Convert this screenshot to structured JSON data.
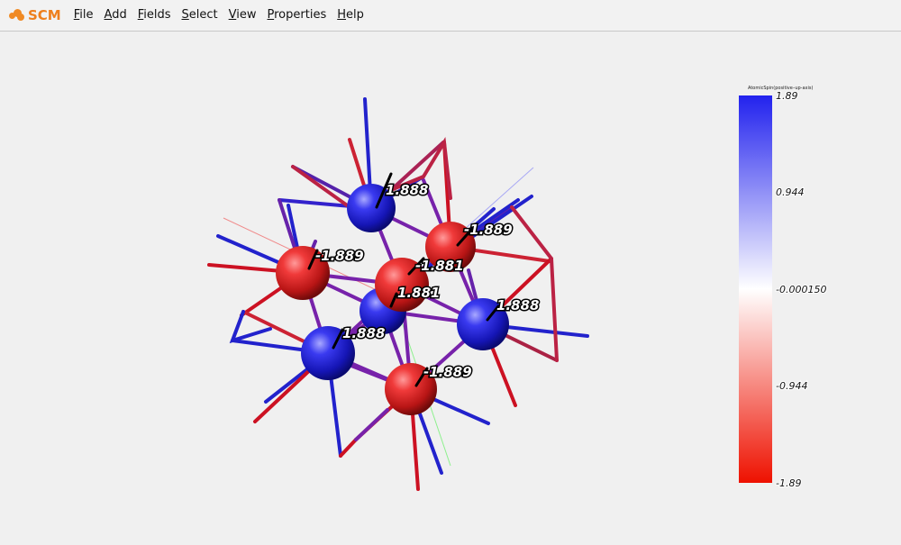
{
  "app": {
    "logo_text": "SCM",
    "brand_color": "#ee7f1c"
  },
  "menu": [
    {
      "label": "File",
      "mnemonic": "F",
      "rest": "ile"
    },
    {
      "label": "Add",
      "mnemonic": "A",
      "rest": "dd"
    },
    {
      "label": "Fields",
      "mnemonic": "F",
      "rest": "ields"
    },
    {
      "label": "Select",
      "mnemonic": "S",
      "rest": "elect"
    },
    {
      "label": "View",
      "mnemonic": "V",
      "rest": "iew"
    },
    {
      "label": "Properties",
      "mnemonic": "P",
      "rest": "roperties"
    },
    {
      "label": "Help",
      "mnemonic": "H",
      "rest": "elp"
    }
  ],
  "atom_labels": [
    "1.888",
    "-1.889",
    "-1.889",
    "-1.881",
    "1.881",
    "1.888",
    "1.888",
    "-1.889"
  ],
  "colorbar": {
    "title": "AtomicSpin(positive–up-axis)",
    "ticks": [
      "1.89",
      "0.944",
      "-0.000150",
      "-0.944",
      "-1.89"
    ],
    "colors": {
      "top": "#2222ee",
      "middle": "#ffffff",
      "bottom": "#ee1100"
    }
  }
}
